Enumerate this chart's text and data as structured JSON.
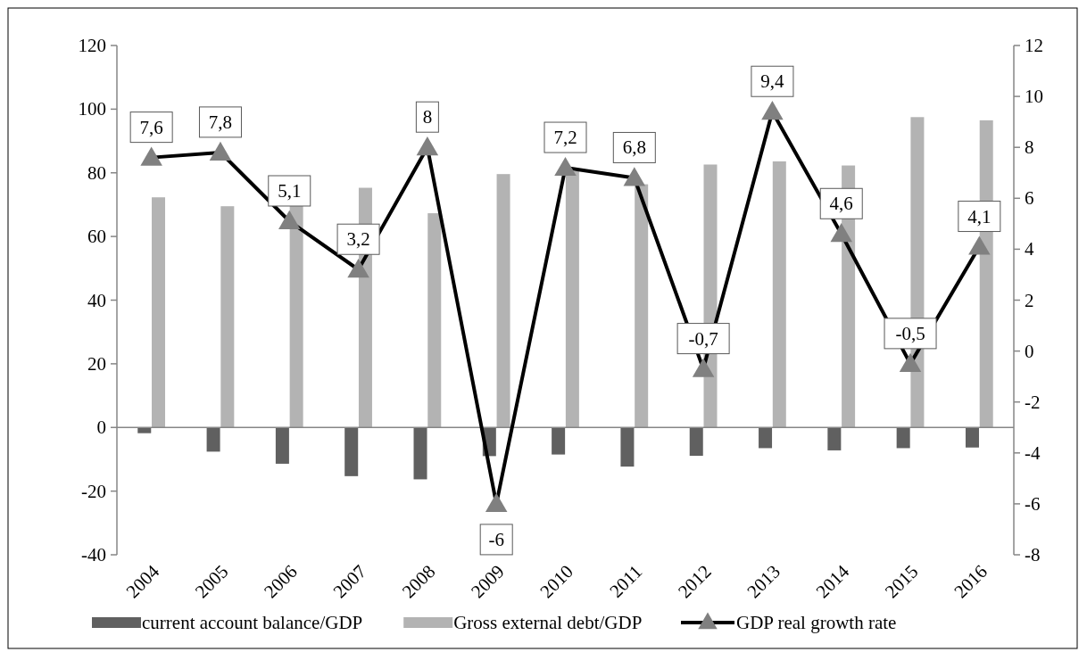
{
  "chart_data": {
    "type": "bar",
    "categories": [
      "2004",
      "2005",
      "2006",
      "2007",
      "2008",
      "2009",
      "2010",
      "2011",
      "2012",
      "2013",
      "2014",
      "2015",
      "2016"
    ],
    "series": [
      {
        "name": "current account balance/GDP",
        "color": "#606060",
        "values": [
          -1.8,
          -7.6,
          -11.4,
          -15.3,
          -16.3,
          -9,
          -8.5,
          -12.3,
          -8.9,
          -6.5,
          -7.2,
          -6.5,
          -6.3
        ]
      },
      {
        "name": "Gross external debt/GDP",
        "color": "#b3b3b3",
        "values": [
          72.3,
          69.5,
          70,
          75.3,
          67.3,
          79.6,
          80.5,
          76.4,
          82.6,
          83.6,
          82.3,
          97.5,
          96.5
        ]
      },
      {
        "name": "GDP real growth rate",
        "type": "line",
        "axis": "y2",
        "color": "#000000",
        "marker": "triangle",
        "values": [
          7.6,
          7.8,
          5.1,
          3.2,
          8,
          -6,
          7.2,
          6.8,
          -0.7,
          9.4,
          4.6,
          -0.5,
          4.1
        ],
        "value_labels": [
          "7,6",
          "7,8",
          "5,1",
          "3,2",
          "8",
          "-6",
          "7,2",
          "6,8",
          "-0,7",
          "9,4",
          "4,6",
          "-0,5",
          "4,1"
        ]
      }
    ],
    "ylim": [
      -40,
      120
    ],
    "yticks": [
      -40,
      -20,
      0,
      20,
      40,
      60,
      80,
      100,
      120
    ],
    "y2lim": [
      -8,
      12
    ],
    "y2ticks": [
      -8,
      -6,
      -4,
      -2,
      0,
      2,
      4,
      6,
      8,
      10,
      12
    ],
    "legend": "bottom"
  }
}
